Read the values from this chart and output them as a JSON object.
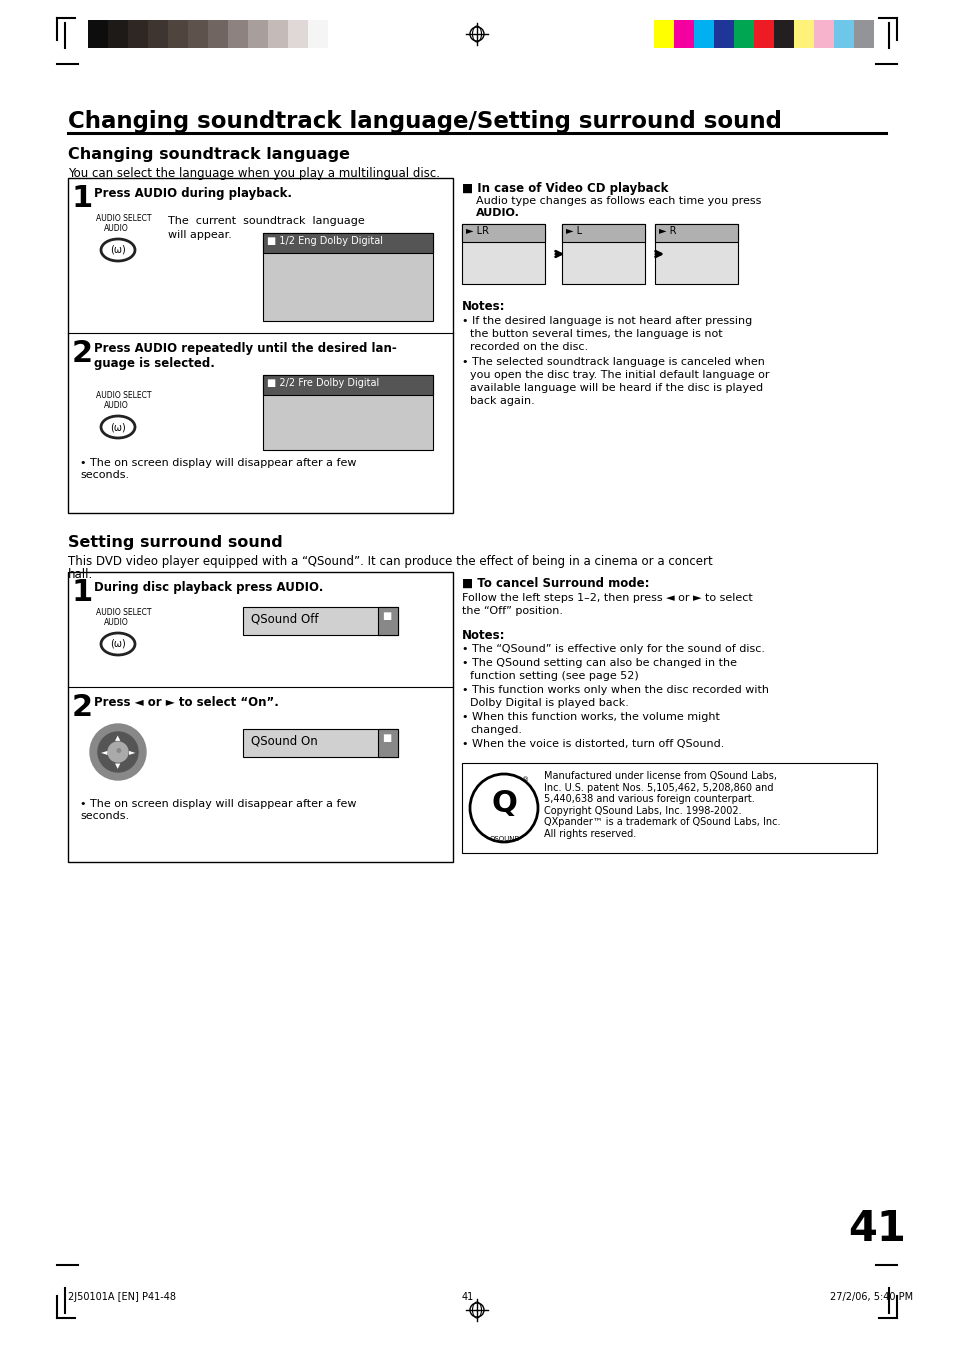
{
  "page_number": "41",
  "footer_left": "2J50101A [EN] P41-48",
  "footer_center": "41",
  "footer_right": "27/2/06, 5:40 PM",
  "main_title": "Changing soundtrack language/Setting surround sound",
  "section1_title": "Changing soundtrack language",
  "section1_intro": "You can select the language when you play a multilingual disc.",
  "step1_title": "Press AUDIO during playback.",
  "step1_text": "The current soundtrack language\nwill appear.",
  "step1_display": "■ 1/2 Eng Dolby Digital",
  "step2_title": "Press AUDIO repeatedly until the desired lan-\nguage is selected.",
  "step2_display": "■ 2/2 Fre Dolby Digital",
  "step2_bullet": "The on screen display will disappear after a few\nseconds.",
  "right_box_title": "■ In case of Video CD playback",
  "right_box_text": "Audio type changes as follows each time you press\nAUDIO.",
  "right_box_labels": [
    "► LR",
    "► L",
    "► R"
  ],
  "notes_title": "Notes:",
  "notes": [
    "If the desired language is not heard after pressing\nthe button several times, the language is not\nrecorded on the disc.",
    "The selected soundtrack language is canceled when\nyou open the disc tray. The initial default language or\navailable language will be heard if the disc is played\nback again."
  ],
  "section2_title": "Setting surround sound",
  "section2_intro1": "This DVD video player equipped with a “QSound”. It can produce the effect of being in a cinema or a concert",
  "section2_intro2": "hall.",
  "step3_title": "During disc playback press AUDIO.",
  "step3_display": "QSound Off",
  "step4_title": "Press ◄ or ► to select “On”.",
  "step4_display": "QSound On",
  "step4_bullet": "The on screen display will disappear after a few\nseconds.",
  "cancel_title": "■ To cancel Surround mode:",
  "cancel_text1": "Follow the left steps 1–2, then press ◄ or ► to select",
  "cancel_text2": "the “Off” position.",
  "notes2_title": "Notes:",
  "notes2": [
    "The “QSound” is effective only for the sound of disc.",
    "The QSound setting can also be changed in the\nfunction setting (see page 52)",
    "This function works only when the disc recorded with\nDolby Digital is played back.",
    "When this function works, the volume might\nchanged.",
    "When the voice is distorted, turn off QSound."
  ],
  "qsound_text": "Manufactured under license from QSound Labs,\nInc. U.S. patent Nos. 5,105,462, 5,208,860 and\n5,440,638 and various foreign counterpart.\nCopyright QSound Labs, Inc. 1998-2002.\nQXpander™ is a trademark of QSound Labs, Inc.\nAll rights reserved.",
  "bg_color": "#ffffff",
  "color_bar_left": [
    "#0d0d0d",
    "#1e1a18",
    "#2e2724",
    "#3e3530",
    "#4f443e",
    "#5e534c",
    "#706560",
    "#8d8280",
    "#a89e9b",
    "#c4bbb8",
    "#e0d8d6",
    "#f5f5f5"
  ],
  "color_bar_right": [
    "#ffff00",
    "#f400a0",
    "#00b0f0",
    "#1f3598",
    "#00a651",
    "#ed1c24",
    "#231f20",
    "#fff27a",
    "#f7b3cc",
    "#6ec6e8",
    "#929497"
  ]
}
